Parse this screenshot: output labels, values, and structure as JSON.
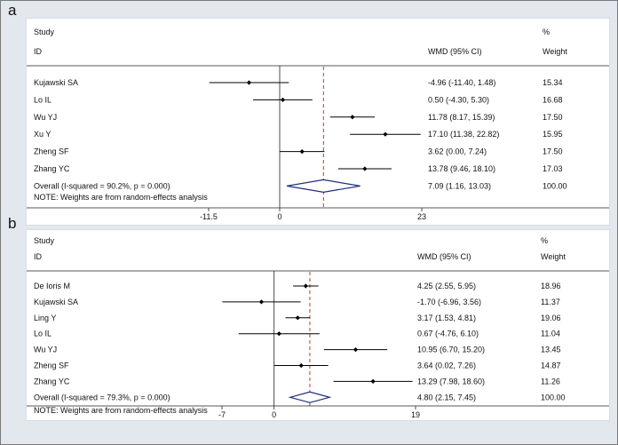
{
  "figure": {
    "panels": [
      {
        "label": "a",
        "header": {
          "study": "Study",
          "id": "ID",
          "effect": "WMD (95% CI)",
          "pct": "%",
          "weight": "Weight"
        },
        "note": "NOTE: Weights are from random-effects analysis"
      },
      {
        "label": "b",
        "header": {
          "study": "Study",
          "id": "ID",
          "effect": "WMD (95% CI)",
          "pct": "%",
          "weight": "Weight"
        },
        "note": "NOTE: Weights are from random-effects analysis"
      }
    ]
  },
  "chart_data": [
    {
      "type": "forest",
      "panel": "a",
      "xlim": [
        -11.5,
        23
      ],
      "ticks": [
        -11.5,
        0,
        23
      ],
      "tick_labels": [
        "-11.5",
        "0",
        "23"
      ],
      "reference_line": 0,
      "overall_line": 7.09,
      "studies": [
        {
          "name": "Kujawski SA",
          "wmd": -4.96,
          "lo": -11.4,
          "hi": 1.48,
          "ci_text": "-4.96 (-11.40, 1.48)",
          "weight": "15.34"
        },
        {
          "name": "Lo IL",
          "wmd": 0.5,
          "lo": -4.3,
          "hi": 5.3,
          "ci_text": "0.50 (-4.30, 5.30)",
          "weight": "16.68"
        },
        {
          "name": "Wu YJ",
          "wmd": 11.78,
          "lo": 8.17,
          "hi": 15.39,
          "ci_text": "11.78 (8.17, 15.39)",
          "weight": "17.50"
        },
        {
          "name": "Xu Y",
          "wmd": 17.1,
          "lo": 11.38,
          "hi": 22.82,
          "ci_text": "17.10 (11.38, 22.82)",
          "weight": "15.95"
        },
        {
          "name": "Zheng SF",
          "wmd": 3.62,
          "lo": 0.0,
          "hi": 7.24,
          "ci_text": "3.62 (0.00, 7.24)",
          "weight": "17.50"
        },
        {
          "name": "Zhang YC",
          "wmd": 13.78,
          "lo": 9.46,
          "hi": 18.1,
          "ci_text": "13.78 (9.46, 18.10)",
          "weight": "17.03"
        }
      ],
      "overall": {
        "label": "Overall  (I-squared = 90.2%, p = 0.000)",
        "wmd": 7.09,
        "lo": 1.16,
        "hi": 13.03,
        "ci_text": "7.09 (1.16, 13.03)",
        "weight": "100.00"
      }
    },
    {
      "type": "forest",
      "panel": "b",
      "xlim": [
        -7,
        19
      ],
      "ticks": [
        -7,
        0,
        19
      ],
      "tick_labels": [
        "-7",
        "0",
        "19"
      ],
      "reference_line": 0,
      "overall_line": 4.8,
      "studies": [
        {
          "name": "De Ioris M",
          "wmd": 4.25,
          "lo": 2.55,
          "hi": 5.95,
          "ci_text": "4.25 (2.55, 5.95)",
          "weight": "18.96"
        },
        {
          "name": "Kujawski SA",
          "wmd": -1.7,
          "lo": -6.96,
          "hi": 3.56,
          "ci_text": "-1.70 (-6.96, 3.56)",
          "weight": "11.37"
        },
        {
          "name": "Ling Y",
          "wmd": 3.17,
          "lo": 1.53,
          "hi": 4.81,
          "ci_text": "3.17 (1.53, 4.81)",
          "weight": "19.06"
        },
        {
          "name": "Lo IL",
          "wmd": 0.67,
          "lo": -4.76,
          "hi": 6.1,
          "ci_text": "0.67 (-4.76, 6.10)",
          "weight": "11.04"
        },
        {
          "name": "Wu YJ",
          "wmd": 10.95,
          "lo": 6.7,
          "hi": 15.2,
          "ci_text": "10.95 (6.70, 15.20)",
          "weight": "13.45"
        },
        {
          "name": "Zheng SF",
          "wmd": 3.64,
          "lo": 0.02,
          "hi": 7.26,
          "ci_text": "3.64 (0.02, 7.26)",
          "weight": "14.87"
        },
        {
          "name": "Zhang YC",
          "wmd": 13.29,
          "lo": 7.98,
          "hi": 18.6,
          "ci_text": "13.29 (7.98, 18.60)",
          "weight": "11.26"
        }
      ],
      "overall": {
        "label": "Overall  (I-squared = 79.3%, p = 0.000)",
        "wmd": 4.8,
        "lo": 2.15,
        "hi": 7.45,
        "ci_text": "4.80 (2.15, 7.45)",
        "weight": "100.00"
      }
    }
  ]
}
